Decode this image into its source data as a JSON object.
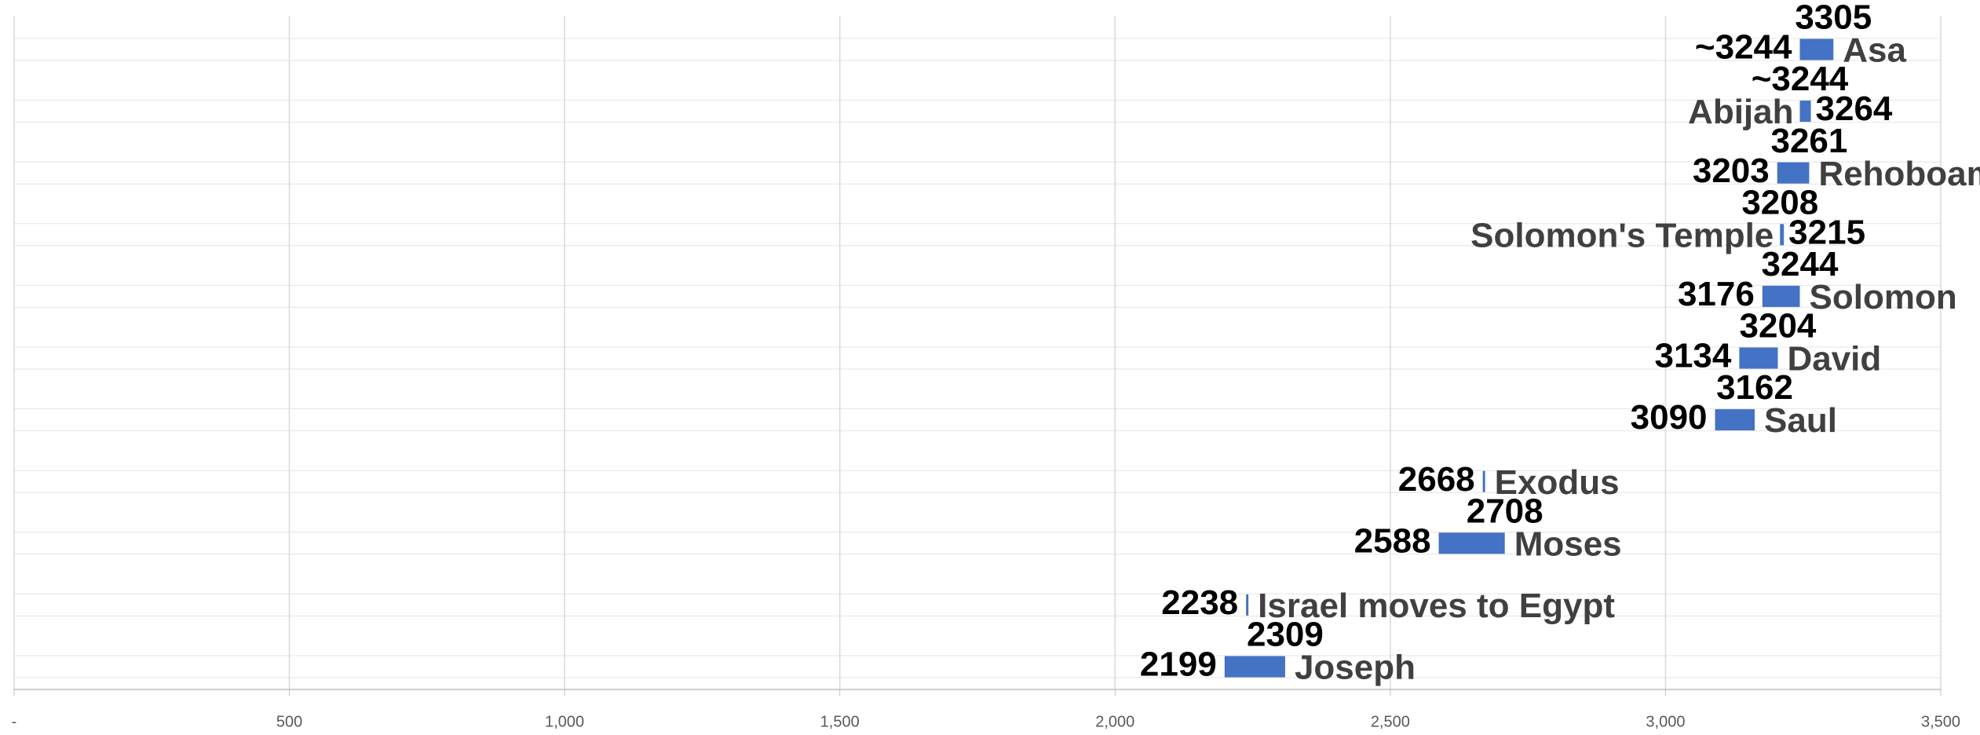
{
  "chart_data": {
    "type": "floating-bar",
    "categories": [
      "Asa",
      "Abijah",
      "Rehoboam",
      "Solomon's Temple",
      "Solomon",
      "David",
      "Saul",
      "Exodus",
      "Moses",
      "Israel moves to Egypt",
      "Joseph"
    ],
    "start": [
      3244,
      3244,
      3203,
      3208,
      3176,
      3134,
      3090,
      2668,
      2588,
      2238,
      2199
    ],
    "start_labels": [
      "~3244",
      "~3244",
      "3203",
      "3208",
      "3176",
      "3134",
      "3090",
      "2668",
      "2588",
      "2238",
      "2199"
    ],
    "end": [
      3305,
      3264,
      3261,
      3215,
      3244,
      3204,
      3162,
      null,
      2708,
      null,
      2309
    ],
    "color": "#4472c4",
    "xlim": [
      0,
      3500
    ],
    "xticks": [
      {
        "value": 0,
        "label": "-"
      },
      500,
      {
        "value": 1000,
        "label": "1,000"
      },
      {
        "value": 1500,
        "label": "1,500"
      },
      {
        "value": 2000,
        "label": "2,000"
      },
      {
        "value": 2500,
        "label": "2,500"
      },
      {
        "value": 3000,
        "label": "3,000"
      },
      {
        "value": 3500,
        "label": "3,500"
      }
    ],
    "grid": true
  }
}
